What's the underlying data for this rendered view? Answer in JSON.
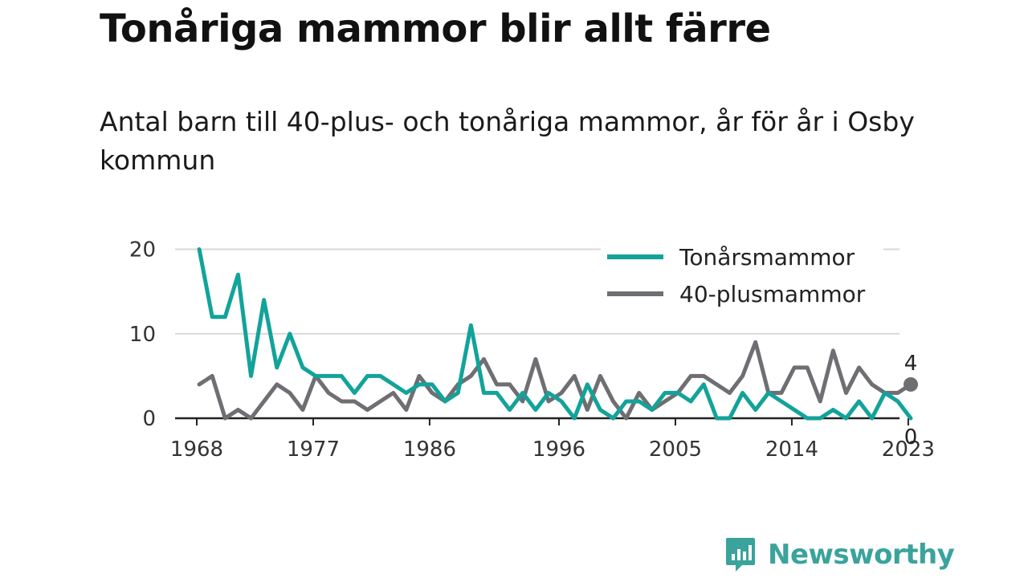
{
  "header": {
    "title": "Tonåriga mammor blir allt färre",
    "subtitle": "Antal barn till 40-plus- och tonåriga mammor, år för år i Osby kommun"
  },
  "brand": {
    "name": "Newsworthy",
    "icon": "newsworthy-logo-icon",
    "color": "#3aa39c"
  },
  "chart_data": {
    "type": "line",
    "title": "",
    "xlabel": "",
    "ylabel": "",
    "x_ticks": [
      "1968",
      "1977",
      "1986",
      "1996",
      "2005",
      "2014",
      "2023"
    ],
    "y_ticks": [
      "0",
      "10",
      "20"
    ],
    "xlim": [
      1968,
      2024
    ],
    "ylim": [
      0,
      21
    ],
    "grid": "horizontal",
    "legend_position": "top-right",
    "x": [
      1969,
      1970,
      1971,
      1972,
      1973,
      1974,
      1975,
      1976,
      1977,
      1978,
      1979,
      1980,
      1981,
      1982,
      1983,
      1984,
      1985,
      1986,
      1987,
      1988,
      1989,
      1990,
      1991,
      1992,
      1993,
      1994,
      1995,
      1996,
      1997,
      1998,
      1999,
      2000,
      2001,
      2002,
      2003,
      2004,
      2005,
      2006,
      2007,
      2008,
      2009,
      2010,
      2011,
      2012,
      2013,
      2014,
      2015,
      2016,
      2017,
      2018,
      2019,
      2020,
      2021,
      2022,
      2023,
      2024
    ],
    "series": [
      {
        "name": "Tonårsmammor",
        "color": "#12a39a",
        "values": [
          20,
          12,
          12,
          17,
          5,
          14,
          6,
          10,
          6,
          5,
          5,
          5,
          3,
          5,
          5,
          4,
          3,
          4,
          4,
          2,
          3,
          11,
          3,
          3,
          1,
          3,
          1,
          3,
          2,
          0,
          4,
          1,
          0,
          2,
          2,
          1,
          3,
          3,
          2,
          4,
          0,
          0,
          3,
          1,
          3,
          2,
          1,
          0,
          0,
          1,
          0,
          2,
          0,
          3,
          2,
          0
        ],
        "end_label": "0"
      },
      {
        "name": "40-plusmammor",
        "color": "#6e6e73",
        "values": [
          4,
          5,
          0,
          1,
          0,
          2,
          4,
          3,
          1,
          5,
          3,
          2,
          2,
          1,
          2,
          3,
          1,
          5,
          3,
          2,
          4,
          5,
          7,
          4,
          4,
          2,
          7,
          2,
          3,
          5,
          1,
          5,
          2,
          0,
          3,
          1,
          2,
          3,
          5,
          5,
          4,
          3,
          5,
          9,
          3,
          3,
          6,
          6,
          2,
          8,
          3,
          6,
          4,
          3,
          3,
          4
        ],
        "end_label": "4"
      }
    ]
  }
}
